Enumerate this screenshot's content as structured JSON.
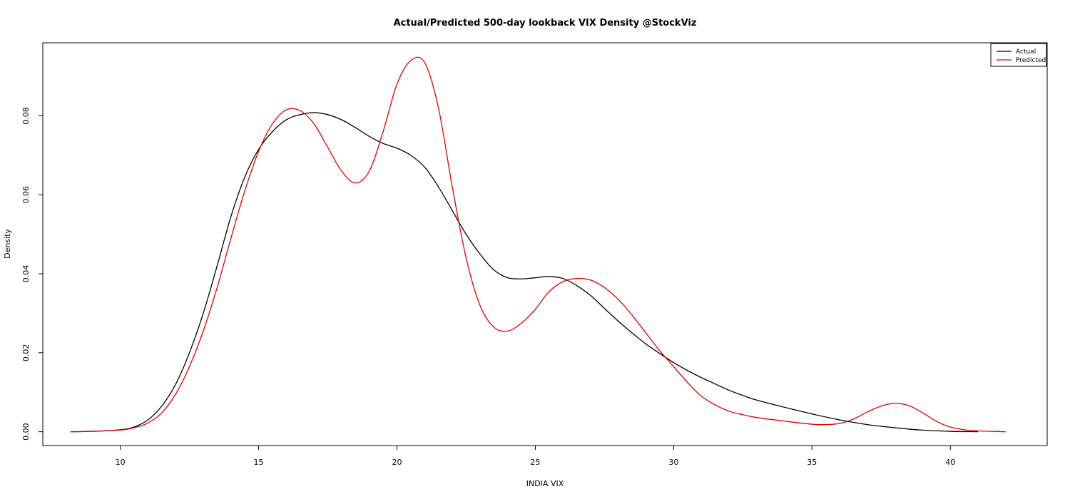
{
  "chart_data": {
    "type": "line",
    "title": "Actual/Predicted 500-day lookback VIX Density @StockViz",
    "xlabel": "INDIA VIX",
    "ylabel": "Density",
    "xlim": [
      7.2,
      43.5
    ],
    "ylim": [
      -0.0035,
      0.0985
    ],
    "xticks": [
      10,
      15,
      20,
      25,
      30,
      35,
      40
    ],
    "yticks": [
      0.0,
      0.02,
      0.04,
      0.06,
      0.08
    ],
    "ytick_labels": [
      "0.00",
      "0.02",
      "0.04",
      "0.06",
      "0.08"
    ],
    "grid": false,
    "legend": "top-right",
    "series": [
      {
        "name": "Actual",
        "color": "#000000",
        "x": [
          8.2,
          9.0,
          10.0,
          10.5,
          11.0,
          11.5,
          12.0,
          12.5,
          13.0,
          13.5,
          14.0,
          14.5,
          15.0,
          15.5,
          16.0,
          16.5,
          17.0,
          17.5,
          18.0,
          18.5,
          19.0,
          19.5,
          20.0,
          20.5,
          21.0,
          21.5,
          22.0,
          22.5,
          23.0,
          23.5,
          24.0,
          24.5,
          25.0,
          25.5,
          26.0,
          26.5,
          27.0,
          27.5,
          28.0,
          28.5,
          29.0,
          29.5,
          30.0,
          30.5,
          31.0,
          31.5,
          32.0,
          32.5,
          33.0,
          34.0,
          35.0,
          36.0,
          37.0,
          38.0,
          39.0,
          40.0,
          41.0
        ],
        "values": [
          0.0,
          0.0001,
          0.0005,
          0.0012,
          0.003,
          0.0065,
          0.012,
          0.02,
          0.03,
          0.042,
          0.0545,
          0.0645,
          0.0715,
          0.076,
          0.079,
          0.0803,
          0.0808,
          0.0803,
          0.079,
          0.077,
          0.0748,
          0.073,
          0.0718,
          0.07,
          0.067,
          0.062,
          0.056,
          0.05,
          0.045,
          0.041,
          0.039,
          0.0387,
          0.039,
          0.0393,
          0.0388,
          0.037,
          0.0345,
          0.0312,
          0.028,
          0.025,
          0.0222,
          0.0198,
          0.0175,
          0.0155,
          0.0137,
          0.0121,
          0.0105,
          0.0092,
          0.008,
          0.0062,
          0.0045,
          0.003,
          0.0018,
          0.001,
          0.0004,
          0.0001,
          0.0
        ]
      },
      {
        "name": "Predicted",
        "color": "#e00000",
        "x": [
          8.2,
          9.0,
          10.0,
          10.5,
          11.0,
          11.5,
          12.0,
          12.5,
          13.0,
          13.5,
          14.0,
          14.5,
          15.0,
          15.5,
          16.0,
          16.5,
          17.0,
          17.5,
          18.0,
          18.5,
          19.0,
          19.5,
          20.0,
          20.5,
          21.0,
          21.5,
          22.0,
          22.5,
          23.0,
          23.5,
          24.0,
          24.5,
          25.0,
          25.5,
          26.0,
          26.5,
          27.0,
          27.5,
          28.0,
          28.5,
          29.0,
          29.5,
          30.0,
          30.5,
          31.0,
          31.5,
          32.0,
          32.5,
          33.0,
          34.0,
          35.0,
          35.5,
          36.0,
          36.5,
          37.0,
          37.5,
          38.0,
          38.5,
          39.0,
          39.5,
          40.0,
          40.5,
          41.0,
          42.0
        ],
        "values": [
          0.0,
          0.0001,
          0.0004,
          0.001,
          0.0022,
          0.0048,
          0.0095,
          0.0165,
          0.0255,
          0.0365,
          0.049,
          0.061,
          0.071,
          0.078,
          0.0815,
          0.0813,
          0.078,
          0.072,
          0.066,
          0.063,
          0.066,
          0.076,
          0.088,
          0.094,
          0.0935,
          0.082,
          0.062,
          0.044,
          0.032,
          0.0265,
          0.0255,
          0.0275,
          0.031,
          0.0355,
          0.038,
          0.0388,
          0.0384,
          0.0365,
          0.0335,
          0.0295,
          0.025,
          0.0205,
          0.0165,
          0.0125,
          0.009,
          0.0068,
          0.0052,
          0.0043,
          0.0036,
          0.0027,
          0.0019,
          0.0018,
          0.0021,
          0.0032,
          0.005,
          0.0065,
          0.0072,
          0.0066,
          0.0048,
          0.0026,
          0.0012,
          0.0005,
          0.0002,
          0.0
        ]
      }
    ]
  }
}
